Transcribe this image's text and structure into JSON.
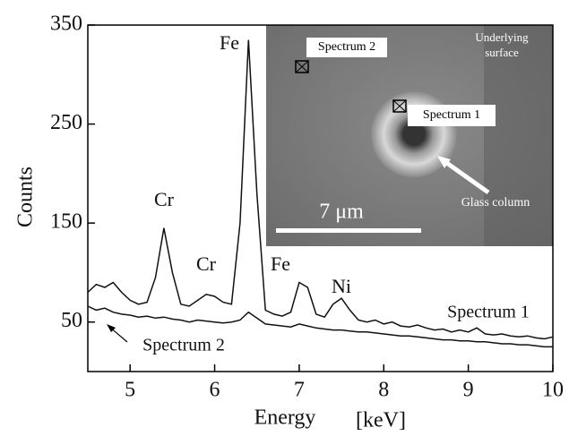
{
  "chart_data": {
    "type": "line",
    "x_label": "Energy",
    "x_unit": "[keV]",
    "y_label": "Counts",
    "xlim": [
      4.5,
      10
    ],
    "xticks": [
      5,
      6,
      7,
      8,
      9,
      10
    ],
    "ylim": [
      0,
      350
    ],
    "yticks": [
      50,
      150,
      250,
      350
    ],
    "x": [
      4.5,
      4.6,
      4.7,
      4.8,
      4.9,
      5.0,
      5.1,
      5.2,
      5.3,
      5.4,
      5.5,
      5.6,
      5.7,
      5.8,
      5.9,
      6.0,
      6.1,
      6.2,
      6.3,
      6.4,
      6.5,
      6.6,
      6.7,
      6.8,
      6.9,
      7.0,
      7.1,
      7.2,
      7.3,
      7.4,
      7.5,
      7.6,
      7.7,
      7.8,
      7.9,
      8.0,
      8.1,
      8.2,
      8.3,
      8.4,
      8.5,
      8.6,
      8.7,
      8.8,
      8.9,
      9.0,
      9.1,
      9.2,
      9.3,
      9.4,
      9.5,
      9.6,
      9.7,
      9.8,
      9.9,
      10.0
    ],
    "series": [
      {
        "name": "Spectrum 1",
        "color": "#111111",
        "values": [
          80,
          88,
          85,
          90,
          80,
          72,
          68,
          70,
          95,
          145,
          100,
          68,
          66,
          72,
          78,
          76,
          70,
          68,
          150,
          335,
          180,
          62,
          58,
          56,
          60,
          90,
          85,
          58,
          55,
          68,
          74,
          62,
          52,
          50,
          52,
          48,
          50,
          46,
          45,
          47,
          44,
          42,
          43,
          40,
          42,
          40,
          44,
          38,
          37,
          38,
          36,
          35,
          36,
          34,
          33,
          35
        ]
      },
      {
        "name": "Spectrum 2",
        "color": "#111111",
        "values": [
          66,
          62,
          64,
          60,
          58,
          57,
          55,
          56,
          54,
          55,
          53,
          52,
          50,
          52,
          51,
          50,
          49,
          50,
          52,
          60,
          54,
          48,
          47,
          46,
          45,
          48,
          46,
          44,
          43,
          42,
          42,
          41,
          40,
          40,
          39,
          38,
          37,
          36,
          36,
          35,
          34,
          33,
          32,
          32,
          31,
          31,
          30,
          30,
          29,
          28,
          28,
          27,
          27,
          26,
          25,
          25
        ]
      }
    ],
    "annotations": [
      "Cr",
      "Cr",
      "Fe",
      "Fe",
      "Ni"
    ],
    "inset": {
      "labels": [
        "Spectrum 2",
        "Underlying",
        "surface",
        "Spectrum 1",
        "Glass column",
        "7 μm"
      ]
    }
  }
}
